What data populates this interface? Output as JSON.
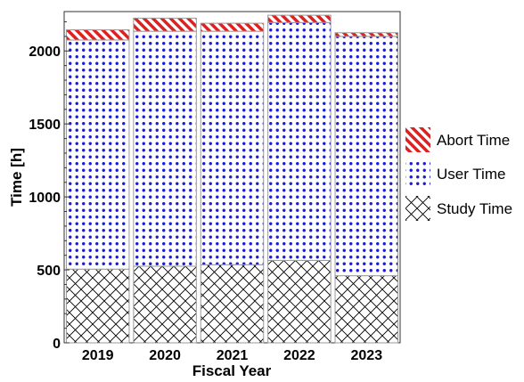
{
  "chart_data": {
    "type": "bar",
    "stacked": true,
    "title": "",
    "xlabel": "Fiscal Year",
    "ylabel": "Time [h]",
    "categories": [
      "2019",
      "2020",
      "2021",
      "2022",
      "2023"
    ],
    "ylim": [
      0,
      2270
    ],
    "yticks": [
      0,
      500,
      1000,
      1500,
      2000
    ],
    "grid": false,
    "legend_position": "right",
    "series": [
      {
        "name": "Study Time",
        "pattern": "crosshatch",
        "color": "#000000",
        "values": [
          505,
          525,
          535,
          565,
          460
        ]
      },
      {
        "name": "User Time",
        "pattern": "blue-dots",
        "color": "#1a1adc",
        "values": [
          1570,
          1610,
          1600,
          1630,
          1640
        ]
      },
      {
        "name": "Abort Time",
        "pattern": "red-diagonal-stripes",
        "color": "#e02020",
        "values": [
          70,
          90,
          55,
          50,
          25
        ]
      }
    ]
  }
}
